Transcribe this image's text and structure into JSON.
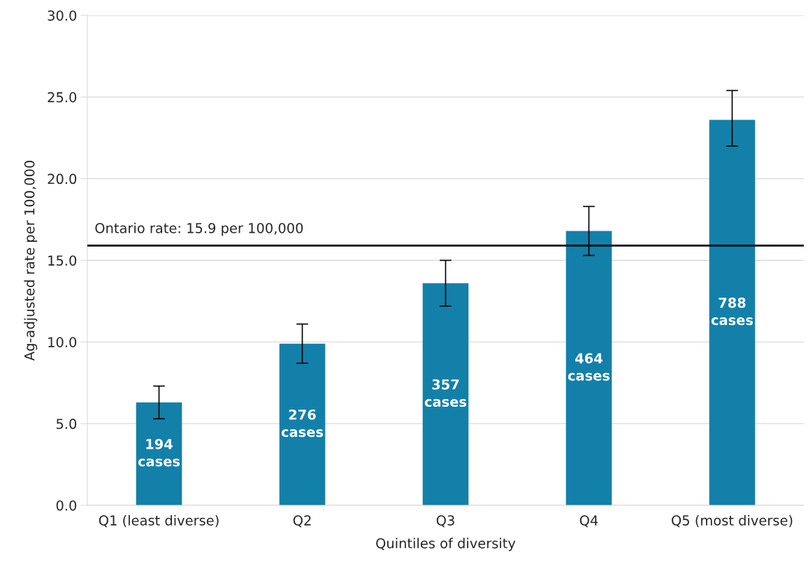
{
  "chart_data": {
    "type": "bar",
    "xlabel": "Quintiles of diversity",
    "ylabel": "Ag-adjusted rate per 100,000",
    "categories": [
      "Q1 (least diverse)",
      "Q2",
      "Q3",
      "Q4",
      "Q5 (most diverse)"
    ],
    "values": [
      6.3,
      9.9,
      13.6,
      16.8,
      23.6
    ],
    "errors": [
      [
        5.3,
        7.3
      ],
      [
        8.7,
        11.1
      ],
      [
        12.2,
        15.0
      ],
      [
        15.3,
        18.3
      ],
      [
        22.0,
        25.4
      ]
    ],
    "annotations": [
      "194\ncases",
      "276\ncases",
      "357\ncases",
      "464\ncases",
      "788\ncases"
    ],
    "color": "#1380a9",
    "ylim": [
      0,
      30
    ],
    "yticks": [
      {
        "value": 0,
        "label": "0.0"
      },
      {
        "value": 5,
        "label": "5.0"
      },
      {
        "value": 10,
        "label": "10.0"
      },
      {
        "value": 15,
        "label": "15.0"
      },
      {
        "value": 20,
        "label": "20.0"
      },
      {
        "value": 25,
        "label": "25.0"
      },
      {
        "value": 30,
        "label": "30.0"
      }
    ],
    "grid": "y",
    "ref_lines": [
      {
        "axis": "y",
        "value": 15.9,
        "label": "Ontario rate: 15.9 per 100,000",
        "color": "#000000"
      }
    ]
  }
}
